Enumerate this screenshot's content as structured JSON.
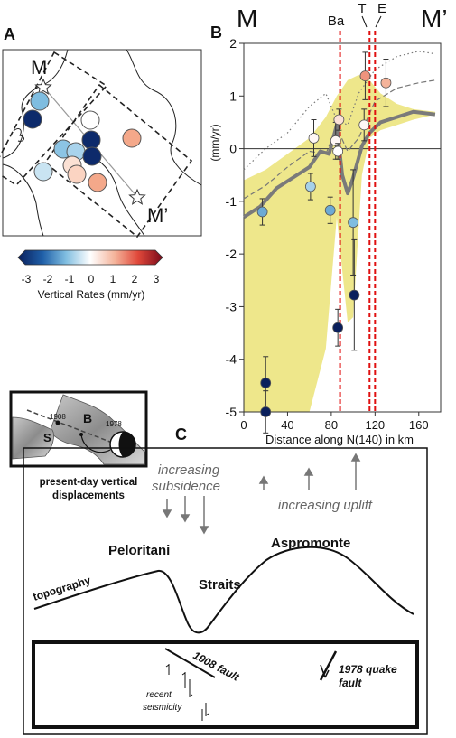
{
  "panel_letters": {
    "a": "A",
    "b": "B",
    "c": "C",
    "inset_b": "B"
  },
  "map": {
    "label_m": "M",
    "label_m_prime": "M’",
    "colorbar": {
      "ticks": [
        "-3",
        "-2",
        "-1",
        "0",
        "1",
        "2",
        "3"
      ],
      "label": "Vertical Rates (mm/yr)"
    },
    "site_values": [
      -3.4,
      -1.2,
      -2.8,
      0.2,
      -3.4,
      -0.7,
      -0.7,
      -1.2,
      0.3,
      0.5,
      1.0,
      0.6,
      1.3
    ]
  },
  "profile": {
    "end_left": "M",
    "end_right": "M’",
    "markers": {
      "ba": "Ba",
      "t": "T",
      "e": "E"
    }
  },
  "chart_data": {
    "type": "scatter",
    "xlabel": "Distance along N(140) in km",
    "ylabel": "(mm/yr)",
    "xlim": [
      0,
      180
    ],
    "ylim": [
      -5,
      2
    ],
    "xticks": [
      "0",
      "40",
      "80",
      "120",
      "160"
    ],
    "yticks": [
      "2",
      "1",
      "0",
      "-1",
      "-2",
      "-3",
      "-4",
      "-5"
    ],
    "points": [
      {
        "x": 17,
        "y": -1.2,
        "err": 0.25,
        "rate": -1.2
      },
      {
        "x": 20,
        "y": -4.45,
        "err": 0.5,
        "rate": -3.4
      },
      {
        "x": 20,
        "y": -5.0,
        "err": 0.4,
        "rate": -3.4
      },
      {
        "x": 61,
        "y": -0.72,
        "err": 0.25,
        "rate": -0.7
      },
      {
        "x": 64,
        "y": 0.2,
        "err": 0.35,
        "rate": 0.1
      },
      {
        "x": 79,
        "y": -1.17,
        "err": 0.25,
        "rate": -1.2
      },
      {
        "x": 84,
        "y": 0.15,
        "err": 0.35,
        "rate": 0.1
      },
      {
        "x": 86,
        "y": -0.05,
        "err": 0.15,
        "rate": 0.0
      },
      {
        "x": 87,
        "y": 0.55,
        "err": 0.2,
        "rate": 0.4
      },
      {
        "x": 86,
        "y": -3.4,
        "err": 0.35,
        "rate": -3.4
      },
      {
        "x": 100,
        "y": -1.4,
        "err": 1.0,
        "rate": -1.0
      },
      {
        "x": 101,
        "y": -2.78,
        "err": 1.05,
        "rate": -3.4
      },
      {
        "x": 110,
        "y": 0.45,
        "err": 0.3,
        "rate": 0.1
      },
      {
        "x": 111,
        "y": 1.38,
        "err": 0.45,
        "rate": 1.3
      },
      {
        "x": 130,
        "y": 1.25,
        "err": 0.45,
        "rate": 1.0
      }
    ],
    "smooth_line": {
      "x": [
        0,
        15,
        30,
        45,
        60,
        70,
        78,
        85,
        90,
        95,
        100,
        108,
        115,
        125,
        140,
        155,
        175
      ],
      "y": [
        -1.3,
        -1.1,
        -0.75,
        -0.55,
        -0.35,
        -0.05,
        -0.1,
        0.45,
        -0.5,
        -0.85,
        -0.55,
        0.05,
        0.3,
        0.5,
        0.6,
        0.7,
        0.65
      ]
    },
    "envelope_upper": {
      "x": [
        0,
        20,
        40,
        60,
        75,
        85,
        95,
        105,
        115,
        125,
        140,
        155,
        175
      ],
      "y": [
        -0.6,
        -0.4,
        -0.1,
        0.2,
        0.6,
        1.0,
        1.3,
        1.4,
        1.3,
        1.05,
        0.85,
        0.75,
        0.7
      ]
    },
    "envelope_lower": {
      "x": [
        0,
        20,
        40,
        60,
        75,
        85,
        95,
        100,
        108,
        115,
        125,
        140,
        155,
        175
      ],
      "y": [
        -5,
        -5,
        -5,
        -5,
        -3.8,
        -1.3,
        -3.3,
        -3.2,
        -0.5,
        0.2,
        0.35,
        0.45,
        0.55,
        0.65
      ]
    },
    "upper_dotted": {
      "x": [
        0,
        20,
        40,
        60,
        75,
        85,
        95,
        105,
        120,
        140,
        160,
        175
      ],
      "y": [
        -0.4,
        0.0,
        0.3,
        0.8,
        1.05,
        0.55,
        0.45,
        1.05,
        1.5,
        1.75,
        1.85,
        1.8
      ]
    },
    "lower_dashed": {
      "x": [
        0,
        20,
        40,
        60,
        75,
        85,
        95,
        105,
        120,
        140,
        160,
        175
      ],
      "y": [
        -0.95,
        -0.7,
        -0.35,
        -0.05,
        -0.1,
        0.4,
        -0.05,
        0.2,
        0.9,
        1.15,
        1.25,
        1.3
      ]
    },
    "vertical_lines": [
      {
        "x": 88,
        "label": "Ba"
      },
      {
        "x": 115,
        "label": "T"
      },
      {
        "x": 120,
        "label": "E"
      }
    ]
  },
  "inset": {
    "label_s": "S",
    "label_1908": "1908",
    "label_1978": "1978"
  },
  "section": {
    "present_day_line1": "present-day vertical",
    "present_day_line2": "displacements",
    "subsidence_line1": "increasing",
    "subsidence_line2": "subsidence",
    "uplift": "increasing uplift",
    "peloritani": "Peloritani",
    "aspromonte": "Aspromonte",
    "straits": "Straits",
    "topography": "topography",
    "fault_1908": "1908 fault",
    "recent_line1": "recent",
    "recent_line2": "seismicity",
    "quake_line1": "1978 quake",
    "quake_line2": "fault"
  }
}
